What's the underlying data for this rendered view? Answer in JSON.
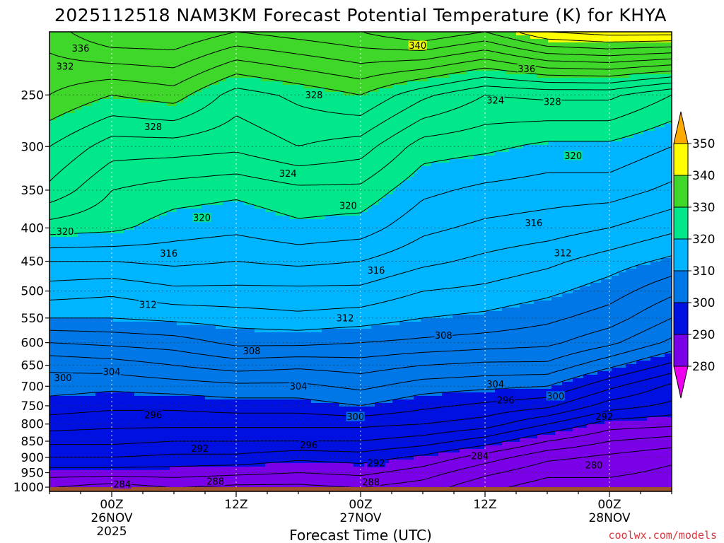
{
  "title": "2025112518 NAM3KM Forecast Potential Temperature (K) for KHYA",
  "credit": "coolwx.com/models",
  "chart_data": {
    "type": "heatmap",
    "title": "2025112518 NAM3KM Forecast Potential Temperature (K) for KHYA",
    "xlabel": "Forecast Time (UTC)",
    "ylabel": "",
    "x_ticks": [
      {
        "hour": 6,
        "lines": [
          "00Z",
          "26NOV",
          "2025"
        ]
      },
      {
        "hour": 18,
        "lines": [
          "12Z"
        ]
      },
      {
        "hour": 30,
        "lines": [
          "00Z",
          "27NOV"
        ]
      },
      {
        "hour": 42,
        "lines": [
          "12Z"
        ]
      },
      {
        "hour": 54,
        "lines": [
          "00Z",
          "28NOV"
        ]
      }
    ],
    "x_range_hours": [
      0,
      60
    ],
    "y_ticks": [
      "250",
      "300",
      "350",
      "400",
      "450",
      "500",
      "550",
      "600",
      "650",
      "700",
      "750",
      "800",
      "850",
      "900",
      "950",
      "1000"
    ],
    "y_tick_values": [
      250,
      300,
      350,
      400,
      450,
      500,
      550,
      600,
      650,
      700,
      750,
      800,
      850,
      900,
      950,
      1000
    ],
    "y_range_hpa": [
      200,
      1015
    ],
    "y_scale": "log",
    "grid": true,
    "colorbar": {
      "labels": [
        "350",
        "340",
        "330",
        "320",
        "310",
        "300",
        "290",
        "280"
      ],
      "bins": [
        {
          "from": 340,
          "to": 350,
          "color": "#ffff00"
        },
        {
          "from": 330,
          "to": 340,
          "color": "#3fd72a"
        },
        {
          "from": 320,
          "to": 330,
          "color": "#00e88a"
        },
        {
          "from": 310,
          "to": 320,
          "color": "#00b5ff"
        },
        {
          "from": 300,
          "to": 310,
          "color": "#0077e6"
        },
        {
          "from": 290,
          "to": 300,
          "color": "#0010e0"
        },
        {
          "from": 280,
          "to": 290,
          "color": "#7a00e8"
        }
      ],
      "over_color": "#ffaa00",
      "under_color": "#ee00ee"
    },
    "theta_profiles": [
      {
        "hour": 0,
        "levels_hpa": [
          1000,
          950,
          900,
          850,
          800,
          750,
          700,
          650,
          600,
          550,
          500,
          450,
          400,
          350,
          300,
          250,
          200
        ],
        "theta_k": [
          286,
          289,
          292,
          294.5,
          297,
          299,
          301,
          302.5,
          306,
          310,
          313,
          316,
          321,
          325.5,
          328,
          332,
          335
        ]
      },
      {
        "hour": 6,
        "levels_hpa": [
          1000,
          950,
          900,
          850,
          800,
          750,
          700,
          650,
          600,
          550,
          500,
          450,
          400,
          350,
          300,
          250,
          200
        ],
        "theta_k": [
          285,
          289,
          292,
          294.5,
          296.5,
          298.5,
          300.5,
          303,
          306.5,
          310,
          312.5,
          316,
          320.5,
          322,
          325,
          330,
          338
        ]
      },
      {
        "hour": 12,
        "levels_hpa": [
          1000,
          950,
          900,
          850,
          800,
          750,
          700,
          650,
          600,
          550,
          500,
          450,
          400,
          350,
          300,
          250,
          200
        ],
        "theta_k": [
          286,
          289,
          291.5,
          294,
          296.5,
          298.5,
          301,
          304,
          307,
          310.5,
          313.5,
          316.5,
          319,
          321,
          325,
          331,
          338
        ]
      },
      {
        "hour": 18,
        "levels_hpa": [
          1000,
          950,
          900,
          850,
          800,
          750,
          700,
          650,
          600,
          550,
          500,
          450,
          400,
          350,
          300,
          250,
          200
        ],
        "theta_k": [
          285.5,
          288.5,
          291.5,
          294,
          296.5,
          299,
          301.5,
          305,
          308.5,
          311,
          313.5,
          316,
          318.5,
          320.5,
          324.5,
          327,
          336
        ]
      },
      {
        "hour": 24,
        "levels_hpa": [
          1000,
          950,
          900,
          850,
          800,
          750,
          700,
          650,
          600,
          550,
          500,
          450,
          400,
          350,
          300,
          250,
          200
        ],
        "theta_k": [
          285.5,
          288,
          290.5,
          294,
          296.5,
          299,
          301.5,
          304.5,
          308.5,
          311.5,
          313.5,
          316.5,
          319.5,
          321.5,
          326,
          328.5,
          337
        ]
      },
      {
        "hour": 30,
        "levels_hpa": [
          1000,
          950,
          900,
          850,
          800,
          750,
          700,
          650,
          600,
          550,
          500,
          450,
          400,
          350,
          300,
          250,
          200
        ],
        "theta_k": [
          286,
          288.5,
          291,
          294,
          296.5,
          300,
          302.5,
          305,
          308,
          311,
          313.5,
          316,
          319,
          321.5,
          325,
          330,
          338
        ]
      },
      {
        "hour": 36,
        "levels_hpa": [
          1000,
          950,
          900,
          850,
          800,
          750,
          700,
          650,
          600,
          550,
          500,
          450,
          400,
          350,
          300,
          250,
          200
        ],
        "theta_k": [
          285,
          287,
          289.5,
          293,
          296,
          298.5,
          301,
          304,
          307.5,
          310,
          312,
          314.5,
          316.5,
          318.5,
          321,
          326.5,
          340
        ]
      },
      {
        "hour": 42,
        "levels_hpa": [
          1000,
          950,
          900,
          850,
          800,
          750,
          700,
          650,
          600,
          550,
          500,
          450,
          400,
          350,
          300,
          250,
          200
        ],
        "theta_k": [
          282.5,
          284.5,
          287,
          291,
          295,
          297.5,
          300.5,
          303.5,
          307,
          309.5,
          311.5,
          313.5,
          315.5,
          317.5,
          320.5,
          324,
          338
        ]
      },
      {
        "hour": 48,
        "levels_hpa": [
          1000,
          950,
          900,
          850,
          800,
          750,
          700,
          650,
          600,
          550,
          500,
          450,
          400,
          350,
          300,
          250,
          200
        ],
        "theta_k": [
          281,
          282.5,
          284.5,
          288,
          292,
          296.5,
          300,
          303.5,
          306.5,
          308.5,
          310.5,
          312.5,
          315,
          317,
          319.5,
          324.5,
          342
        ]
      },
      {
        "hour": 54,
        "levels_hpa": [
          1000,
          950,
          900,
          850,
          800,
          750,
          700,
          650,
          600,
          550,
          500,
          450,
          400,
          350,
          300,
          250,
          200
        ],
        "theta_k": [
          281,
          282.5,
          283.5,
          286,
          289,
          293,
          296.5,
          300.5,
          304.5,
          307,
          309,
          311,
          314,
          317,
          319.5,
          324.5,
          343
        ]
      },
      {
        "hour": 60,
        "levels_hpa": [
          1000,
          950,
          900,
          850,
          800,
          750,
          700,
          650,
          600,
          550,
          500,
          450,
          400,
          350,
          300,
          250,
          200
        ],
        "theta_k": [
          280,
          281.5,
          282.5,
          285,
          288.5,
          291.5,
          293.5,
          297.5,
          301.5,
          304,
          306.5,
          309.5,
          312.5,
          315.5,
          318,
          322,
          343
        ]
      }
    ],
    "contour_interval_k": 2,
    "contour_labels": [
      {
        "value": 336,
        "hour": 3,
        "hpa": 212
      },
      {
        "value": 332,
        "hour": 1.5,
        "hpa": 226
      },
      {
        "value": 340,
        "hour": 35.5,
        "hpa": 210
      },
      {
        "value": 336,
        "hour": 46,
        "hpa": 228
      },
      {
        "value": 328,
        "hour": 25.5,
        "hpa": 250
      },
      {
        "value": 324,
        "hour": 43,
        "hpa": 255
      },
      {
        "value": 328,
        "hour": 48.5,
        "hpa": 256
      },
      {
        "value": 328,
        "hour": 10,
        "hpa": 280
      },
      {
        "value": 324,
        "hour": 23,
        "hpa": 330
      },
      {
        "value": 320,
        "hour": 50.5,
        "hpa": 310
      },
      {
        "value": 320,
        "hour": 28.8,
        "hpa": 370
      },
      {
        "value": 320,
        "hour": 14.7,
        "hpa": 386
      },
      {
        "value": 316,
        "hour": 46.7,
        "hpa": 393
      },
      {
        "value": 320,
        "hour": 1.5,
        "hpa": 405
      },
      {
        "value": 316,
        "hour": 11.5,
        "hpa": 438
      },
      {
        "value": 312,
        "hour": 49.5,
        "hpa": 437
      },
      {
        "value": 316,
        "hour": 31.5,
        "hpa": 465
      },
      {
        "value": 312,
        "hour": 9.5,
        "hpa": 525
      },
      {
        "value": 312,
        "hour": 28.5,
        "hpa": 550
      },
      {
        "value": 308,
        "hour": 38,
        "hpa": 585
      },
      {
        "value": 308,
        "hour": 19.5,
        "hpa": 618
      },
      {
        "value": 304,
        "hour": 6,
        "hpa": 665
      },
      {
        "value": 300,
        "hour": 1.3,
        "hpa": 680
      },
      {
        "value": 304,
        "hour": 24,
        "hpa": 700
      },
      {
        "value": 304,
        "hour": 43,
        "hpa": 695
      },
      {
        "value": 300,
        "hour": 48.8,
        "hpa": 725
      },
      {
        "value": 296,
        "hour": 44,
        "hpa": 735
      },
      {
        "value": 296,
        "hour": 10,
        "hpa": 775
      },
      {
        "value": 300,
        "hour": 29.5,
        "hpa": 780
      },
      {
        "value": 292,
        "hour": 53.5,
        "hpa": 780
      },
      {
        "value": 296,
        "hour": 25,
        "hpa": 862
      },
      {
        "value": 292,
        "hour": 14.5,
        "hpa": 873
      },
      {
        "value": 292,
        "hour": 31.5,
        "hpa": 918
      },
      {
        "value": 284,
        "hour": 41.5,
        "hpa": 896
      },
      {
        "value": 280,
        "hour": 52.5,
        "hpa": 925
      },
      {
        "value": 288,
        "hour": 16,
        "hpa": 980
      },
      {
        "value": 288,
        "hour": 31,
        "hpa": 983
      },
      {
        "value": 284,
        "hour": 7,
        "hpa": 990
      }
    ],
    "ground_color": "#a0522d"
  }
}
